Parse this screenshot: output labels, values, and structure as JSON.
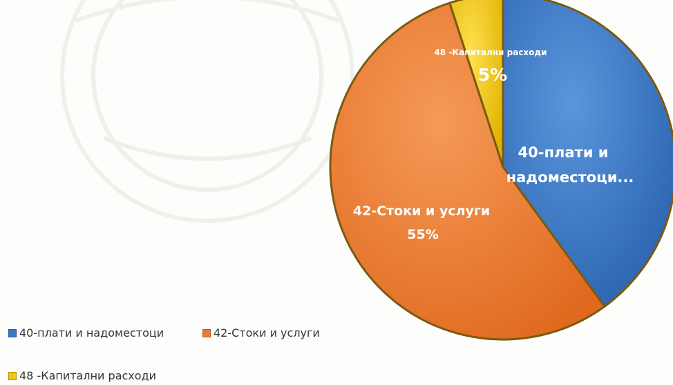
{
  "chart_data": {
    "type": "pie",
    "categories": [
      "40-плати и надоместоци",
      "42-Стоки и услуги",
      "48 -Капитални расходи"
    ],
    "values": [
      40,
      55,
      5
    ],
    "unit": "%",
    "data_labels": [
      {
        "name": "40-плати и",
        "line2": "надоместоци...",
        "value": ""
      },
      {
        "name": "42-Стоки и услуги",
        "value": "55%"
      },
      {
        "name": "48 -Капитални расходи",
        "value": "5%"
      }
    ],
    "legend": [
      {
        "label": "40-плати и надоместоци",
        "color": "#3b78c7"
      },
      {
        "label": "42-Стоки и услуги",
        "color": "#ee7b34"
      },
      {
        "label": "48 -Капитални расходи",
        "color": "#f2c516"
      }
    ],
    "colors": [
      "#3b78c7",
      "#ee7b34",
      "#f2c516"
    ],
    "legend_position": "bottom-left"
  }
}
